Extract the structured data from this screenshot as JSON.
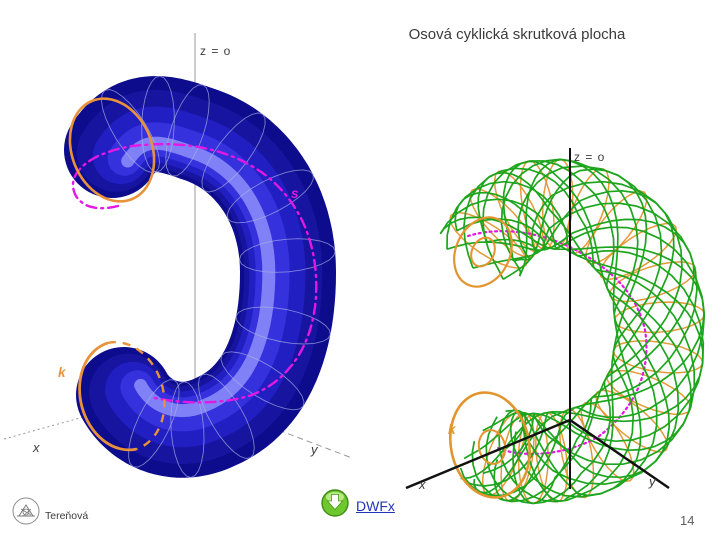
{
  "slide": {
    "title": "Osová cyklická skrutková plocha",
    "title_color": "#3b3b3b"
  },
  "figure_left": {
    "z_axis_label": "z = o",
    "helix_label": "s",
    "circle_label": "k",
    "x_axis_label": "x",
    "y_axis_label": "y",
    "colors": {
      "surface_base": "#0d0c8c",
      "surface_mid1": "#17149f",
      "surface_mid2": "#211ec2",
      "surface_light": "#3431dd",
      "surface_highlight": "#8181f7",
      "rib": "#a9afe2",
      "circle": "#e8923c",
      "helix": "#e318e3",
      "axis": "#999999"
    }
  },
  "figure_right": {
    "z_axis_label": "z = o",
    "circle_label": "k",
    "x_axis_label": "x",
    "y_axis_label": "y",
    "colors": {
      "wire": "#1da51d",
      "circle": "#e2952f",
      "helix": "#e318e3",
      "axis": "#111111"
    }
  },
  "footer": {
    "author": "Tereňová",
    "download_label": "DWFx",
    "link_color": "#2433bb",
    "page_number": "14"
  }
}
